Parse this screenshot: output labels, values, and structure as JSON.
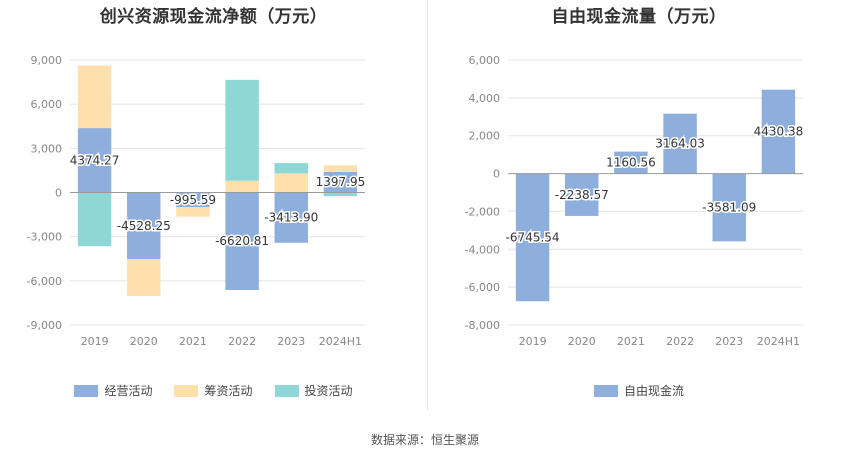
{
  "source_text": "数据来源：恒生聚源",
  "chart_data": [
    {
      "type": "bar",
      "stacked": true,
      "title": "创兴资源现金流净额（万元）",
      "categories": [
        "2019",
        "2020",
        "2021",
        "2022",
        "2023",
        "2024H1"
      ],
      "ylim": [
        -9000,
        9000
      ],
      "yticks": [
        9000,
        6000,
        3000,
        0,
        -3000,
        -6000,
        -9000
      ],
      "ytick_labels": [
        "9,000",
        "6,000",
        "3,000",
        "0",
        "-3,000",
        "-6,000",
        "-9,000"
      ],
      "grid": true,
      "legend_position": "bottom",
      "series": [
        {
          "name": "经营活动",
          "color": "#8eaedc",
          "values": [
            4374.27,
            -4528.25,
            -995.59,
            -6620.81,
            -3413.9,
            1397.95
          ]
        },
        {
          "name": "筹资活动",
          "color": "#fde0ac",
          "values": [
            4250,
            -2500,
            -650,
            800,
            1300,
            450
          ]
        },
        {
          "name": "投资活动",
          "color": "#8fd6d6",
          "values": [
            -3650,
            0,
            0,
            6850,
            700,
            -250
          ]
        }
      ],
      "data_labels": [
        "4374.27",
        "-4528.25",
        "-995.59",
        "-6620.81",
        "-3413.90",
        "1397.95"
      ]
    },
    {
      "type": "bar",
      "title": "自由现金流量（万元）",
      "categories": [
        "2019",
        "2020",
        "2021",
        "2022",
        "2023",
        "2024H1"
      ],
      "ylim": [
        -8000,
        6000
      ],
      "yticks": [
        6000,
        4000,
        2000,
        0,
        -2000,
        -4000,
        -6000,
        -8000
      ],
      "ytick_labels": [
        "6,000",
        "4,000",
        "2,000",
        "0",
        "-2,000",
        "-4,000",
        "-6,000",
        "-8,000"
      ],
      "grid": true,
      "legend_position": "bottom",
      "series": [
        {
          "name": "自由现金流",
          "color": "#8eaedc",
          "values": [
            -6745.54,
            -2238.57,
            1160.56,
            3164.03,
            -3581.09,
            4430.38
          ]
        }
      ],
      "data_labels": [
        "-6745.54",
        "-2238.57",
        "1160.56",
        "3164.03",
        "-3581.09",
        "4430.38"
      ]
    }
  ]
}
